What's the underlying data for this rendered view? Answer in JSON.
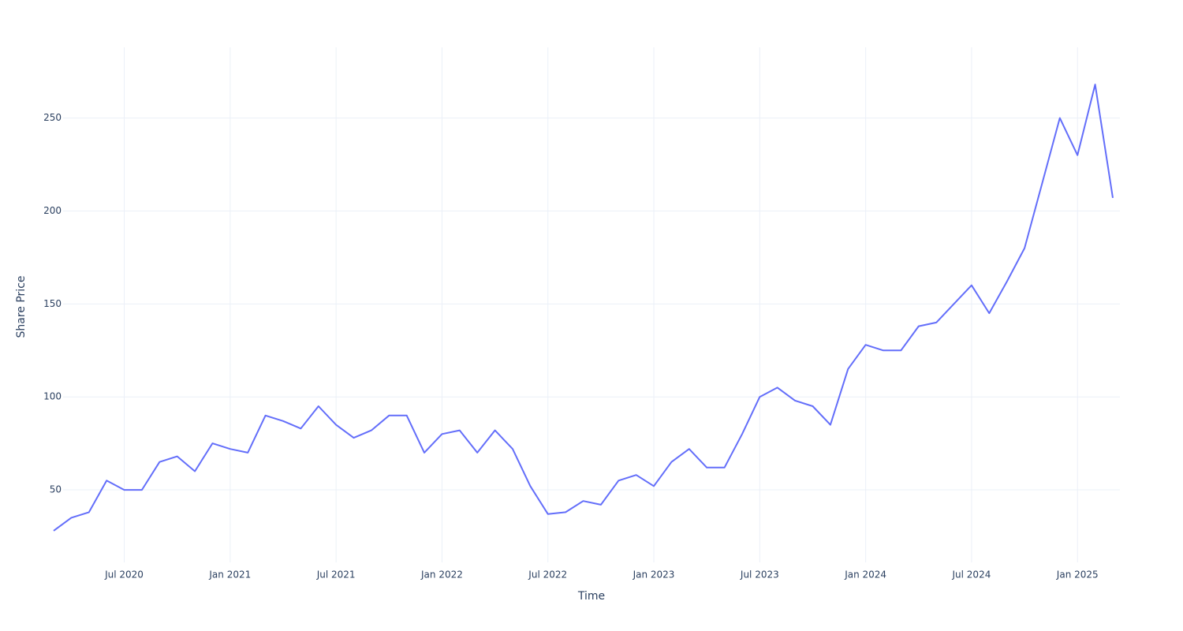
{
  "chart_data": {
    "type": "line",
    "xlabel": "Time",
    "ylabel": "Share Price",
    "x": [
      "2020-03",
      "2020-04",
      "2020-05",
      "2020-06",
      "2020-07",
      "2020-08",
      "2020-09",
      "2020-10",
      "2020-11",
      "2020-12",
      "2021-01",
      "2021-02",
      "2021-03",
      "2021-04",
      "2021-05",
      "2021-06",
      "2021-07",
      "2021-08",
      "2021-09",
      "2021-10",
      "2021-11",
      "2021-12",
      "2022-01",
      "2022-02",
      "2022-03",
      "2022-04",
      "2022-05",
      "2022-06",
      "2022-07",
      "2022-08",
      "2022-09",
      "2022-10",
      "2022-11",
      "2022-12",
      "2023-01",
      "2023-02",
      "2023-03",
      "2023-04",
      "2023-05",
      "2023-06",
      "2023-07",
      "2023-08",
      "2023-09",
      "2023-10",
      "2023-11",
      "2023-12",
      "2024-01",
      "2024-02",
      "2024-03",
      "2024-04",
      "2024-05",
      "2024-06",
      "2024-07",
      "2024-08",
      "2024-09",
      "2024-10",
      "2024-11",
      "2024-12",
      "2025-01",
      "2025-02",
      "2025-03"
    ],
    "series": [
      {
        "name": "Share Price",
        "color": "#636efa",
        "values": [
          28,
          35,
          38,
          55,
          50,
          50,
          65,
          68,
          60,
          75,
          72,
          70,
          90,
          87,
          83,
          95,
          85,
          78,
          82,
          90,
          90,
          70,
          80,
          82,
          70,
          82,
          72,
          52,
          37,
          38,
          44,
          42,
          55,
          58,
          52,
          65,
          72,
          62,
          62,
          80,
          100,
          105,
          98,
          95,
          85,
          115,
          128,
          125,
          125,
          138,
          140,
          150,
          160,
          145,
          162,
          180,
          215,
          250,
          230,
          268,
          207
        ]
      }
    ],
    "xlim": [
      "2020-03",
      "2025-03"
    ],
    "xticks": [
      {
        "value": "2020-07",
        "label": "Jul 2020"
      },
      {
        "value": "2021-01",
        "label": "Jan 2021"
      },
      {
        "value": "2021-07",
        "label": "Jul 2021"
      },
      {
        "value": "2022-01",
        "label": "Jan 2022"
      },
      {
        "value": "2022-07",
        "label": "Jul 2022"
      },
      {
        "value": "2023-01",
        "label": "Jan 2023"
      },
      {
        "value": "2023-07",
        "label": "Jul 2023"
      },
      {
        "value": "2024-01",
        "label": "Jan 2024"
      },
      {
        "value": "2024-07",
        "label": "Jul 2024"
      },
      {
        "value": "2025-01",
        "label": "Jan 2025"
      }
    ],
    "ylim": [
      11,
      288
    ],
    "yticks": [
      50,
      100,
      150,
      200,
      250
    ],
    "grid": true
  }
}
